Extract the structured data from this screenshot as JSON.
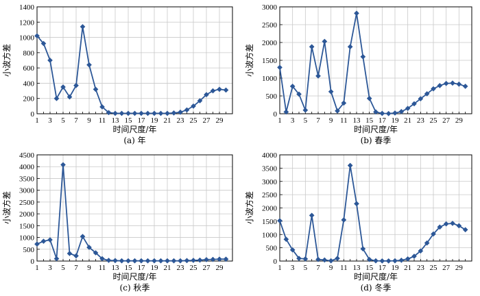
{
  "chart_data": [
    {
      "type": "line",
      "caption": "(a) 年",
      "xlabel": "时间尺度/年",
      "ylabel": "小波方差",
      "xlim": [
        1,
        31
      ],
      "ylim": [
        0,
        1400
      ],
      "xticks": [
        "1",
        "3",
        "5",
        "7",
        "9",
        "11",
        "13",
        "15",
        "17",
        "19",
        "21",
        "23",
        "25",
        "27",
        "29"
      ],
      "yticks": [
        "0",
        "200",
        "400",
        "600",
        "800",
        "1000",
        "1200",
        "1400"
      ],
      "grid": true,
      "x": [
        1,
        2,
        3,
        4,
        5,
        6,
        7,
        8,
        9,
        10,
        11,
        12,
        13,
        14,
        15,
        16,
        17,
        18,
        19,
        20,
        21,
        22,
        23,
        24,
        25,
        26,
        27,
        28,
        29,
        30
      ],
      "values": [
        1020,
        920,
        700,
        200,
        350,
        220,
        370,
        1140,
        640,
        320,
        90,
        15,
        5,
        5,
        5,
        5,
        5,
        5,
        5,
        5,
        5,
        10,
        20,
        50,
        100,
        170,
        250,
        300,
        320,
        310
      ],
      "color": "#2c5797"
    },
    {
      "type": "line",
      "caption": "(b) 春季",
      "xlabel": "时间尺度/年",
      "ylabel": "小波方差",
      "xlim": [
        1,
        31
      ],
      "ylim": [
        0,
        3000
      ],
      "xticks": [
        "1",
        "3",
        "5",
        "7",
        "9",
        "11",
        "13",
        "15",
        "17",
        "19",
        "21",
        "23",
        "25",
        "27",
        "29"
      ],
      "yticks": [
        "0",
        "500",
        "1000",
        "1500",
        "2000",
        "2500",
        "3000"
      ],
      "grid": true,
      "x": [
        1,
        2,
        3,
        4,
        5,
        6,
        7,
        8,
        9,
        10,
        11,
        12,
        13,
        14,
        15,
        16,
        17,
        18,
        19,
        20,
        21,
        22,
        23,
        24,
        25,
        26,
        27,
        28,
        29,
        30
      ],
      "values": [
        1300,
        50,
        770,
        550,
        100,
        1880,
        1060,
        2030,
        620,
        80,
        300,
        1880,
        2820,
        1600,
        430,
        50,
        10,
        5,
        20,
        60,
        150,
        280,
        420,
        560,
        700,
        790,
        850,
        860,
        830,
        770
      ],
      "color": "#2c5797"
    },
    {
      "type": "line",
      "caption": "(c) 秋季",
      "xlabel": "时间尺度/年",
      "ylabel": "小波方差",
      "xlim": [
        1,
        31
      ],
      "ylim": [
        0,
        4500
      ],
      "xticks": [
        "1",
        "3",
        "5",
        "7",
        "9",
        "11",
        "13",
        "15",
        "17",
        "19",
        "21",
        "23",
        "25",
        "27",
        "29"
      ],
      "yticks": [
        "0",
        "500",
        "1000",
        "1500",
        "2000",
        "2500",
        "3000",
        "3500",
        "4000",
        "4500"
      ],
      "grid": true,
      "x": [
        1,
        2,
        3,
        4,
        5,
        6,
        7,
        8,
        9,
        10,
        11,
        12,
        13,
        14,
        15,
        16,
        17,
        18,
        19,
        20,
        21,
        22,
        23,
        24,
        25,
        26,
        27,
        28,
        29,
        30
      ],
      "values": [
        720,
        840,
        900,
        100,
        4080,
        320,
        220,
        1040,
        580,
        350,
        100,
        30,
        20,
        10,
        10,
        10,
        10,
        10,
        10,
        10,
        10,
        10,
        10,
        20,
        30,
        40,
        60,
        70,
        80,
        80
      ],
      "color": "#2c5797"
    },
    {
      "type": "line",
      "caption": "(d) 冬季",
      "xlabel": "时间尺度/年",
      "ylabel": "小波方差",
      "xlim": [
        1,
        31
      ],
      "ylim": [
        0,
        4000
      ],
      "xticks": [
        "1",
        "3",
        "5",
        "7",
        "9",
        "11",
        "13",
        "15",
        "17",
        "19",
        "21",
        "23",
        "25",
        "27",
        "29"
      ],
      "yticks": [
        "0",
        "500",
        "1000",
        "1500",
        "2000",
        "2500",
        "3000",
        "3500",
        "4000"
      ],
      "grid": true,
      "x": [
        1,
        2,
        3,
        4,
        5,
        6,
        7,
        8,
        9,
        10,
        11,
        12,
        13,
        14,
        15,
        16,
        17,
        18,
        19,
        20,
        21,
        22,
        23,
        24,
        25,
        26,
        27,
        28,
        29,
        30
      ],
      "values": [
        1520,
        820,
        420,
        100,
        80,
        1720,
        60,
        40,
        10,
        100,
        1550,
        3600,
        2160,
        460,
        60,
        10,
        5,
        5,
        10,
        30,
        80,
        180,
        380,
        680,
        1020,
        1280,
        1400,
        1420,
        1330,
        1180
      ],
      "color": "#2c5797"
    }
  ]
}
